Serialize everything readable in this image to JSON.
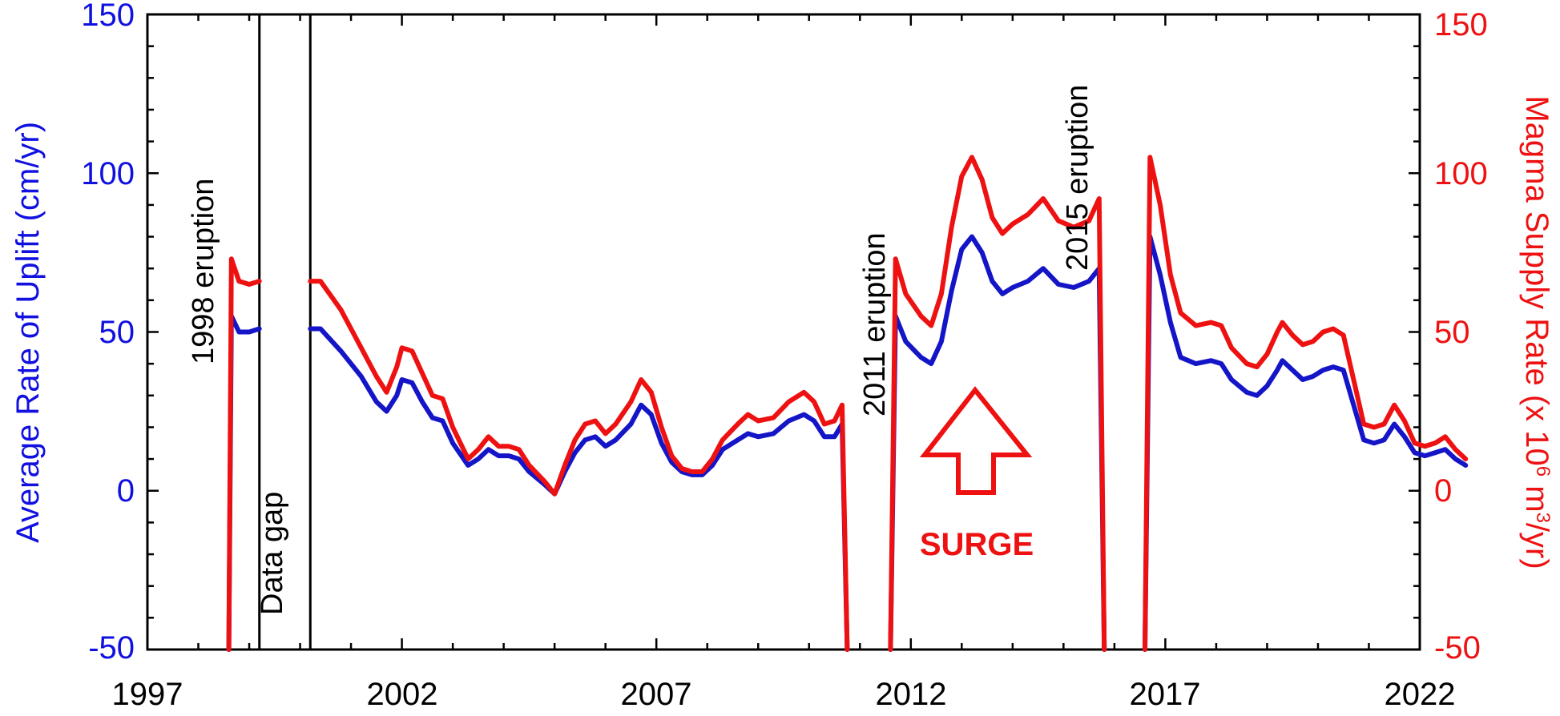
{
  "chart_data": {
    "type": "line",
    "xlim": [
      1997,
      2022
    ],
    "xticks": [
      "1997",
      "2002",
      "2007",
      "2012",
      "2017",
      "2022"
    ],
    "y_left": {
      "label": "Average Rate of Uplift (cm/yr)",
      "lim": [
        -50,
        150
      ],
      "ticks": [
        "150",
        "100",
        "50",
        "0",
        "-50"
      ],
      "color": "#1010e0"
    },
    "y_right": {
      "label_main": "Magma Supply Rate (x 10",
      "label_sup1": "6",
      "label_mid": " m",
      "label_sup2": "3",
      "label_end": "/yr)",
      "lim": [
        -50,
        150
      ],
      "ticks": [
        "150",
        "100",
        "50",
        "0",
        "-50"
      ],
      "color": "#ee1111"
    },
    "annotations": {
      "eruption_1998": "1998 eruption",
      "data_gap": "Data gap",
      "eruption_2011": "2011 eruption",
      "eruption_2015": "2015 eruption",
      "surge": "SURGE"
    },
    "data_gap_range": [
      1999.2,
      2000.2
    ],
    "series": [
      {
        "axis": "left",
        "color": "#1515c8",
        "segments": [
          [
            [
              1998.6,
              -50
            ],
            [
              1998.65,
              55
            ],
            [
              1998.8,
              50
            ],
            [
              1999.0,
              50
            ],
            [
              1999.2,
              51
            ]
          ],
          [
            [
              2000.2,
              51
            ],
            [
              2000.4,
              51
            ],
            [
              2000.8,
              44
            ],
            [
              2001.2,
              36
            ],
            [
              2001.5,
              28
            ],
            [
              2001.7,
              25
            ],
            [
              2001.9,
              30
            ],
            [
              2002.0,
              35
            ],
            [
              2002.2,
              34
            ],
            [
              2002.4,
              28
            ],
            [
              2002.6,
              23
            ],
            [
              2002.8,
              22
            ],
            [
              2003.0,
              15
            ],
            [
              2003.3,
              8
            ],
            [
              2003.5,
              10
            ],
            [
              2003.7,
              13
            ],
            [
              2003.9,
              11
            ],
            [
              2004.1,
              11
            ],
            [
              2004.3,
              10
            ],
            [
              2004.5,
              6
            ],
            [
              2004.8,
              2
            ],
            [
              2005.0,
              -1
            ],
            [
              2005.2,
              6
            ],
            [
              2005.4,
              12
            ],
            [
              2005.6,
              16
            ],
            [
              2005.8,
              17
            ],
            [
              2006.0,
              14
            ],
            [
              2006.2,
              16
            ],
            [
              2006.5,
              21
            ],
            [
              2006.7,
              27
            ],
            [
              2006.9,
              24
            ],
            [
              2007.1,
              15
            ],
            [
              2007.3,
              9
            ],
            [
              2007.5,
              6
            ],
            [
              2007.7,
              5
            ],
            [
              2007.9,
              5
            ],
            [
              2008.1,
              8
            ],
            [
              2008.3,
              13
            ],
            [
              2008.6,
              16
            ],
            [
              2008.8,
              18
            ],
            [
              2009.0,
              17
            ],
            [
              2009.3,
              18
            ],
            [
              2009.6,
              22
            ],
            [
              2009.9,
              24
            ],
            [
              2010.1,
              22
            ],
            [
              2010.3,
              17
            ],
            [
              2010.5,
              17
            ],
            [
              2010.65,
              21
            ],
            [
              2010.75,
              -50
            ]
          ],
          [
            [
              2011.6,
              -50
            ],
            [
              2011.7,
              55
            ],
            [
              2011.9,
              47
            ],
            [
              2012.2,
              42
            ],
            [
              2012.4,
              40
            ],
            [
              2012.6,
              47
            ],
            [
              2012.8,
              63
            ],
            [
              2013.0,
              76
            ],
            [
              2013.2,
              80
            ],
            [
              2013.4,
              75
            ],
            [
              2013.6,
              66
            ],
            [
              2013.8,
              62
            ],
            [
              2014.0,
              64
            ],
            [
              2014.3,
              66
            ],
            [
              2014.6,
              70
            ],
            [
              2014.9,
              65
            ],
            [
              2015.2,
              64
            ],
            [
              2015.5,
              66
            ],
            [
              2015.7,
              70
            ],
            [
              2015.8,
              -50
            ]
          ],
          [
            [
              2016.6,
              -50
            ],
            [
              2016.7,
              80
            ],
            [
              2016.9,
              68
            ],
            [
              2017.1,
              53
            ],
            [
              2017.3,
              42
            ],
            [
              2017.6,
              40
            ],
            [
              2017.9,
              41
            ],
            [
              2018.1,
              40
            ],
            [
              2018.3,
              35
            ],
            [
              2018.6,
              31
            ],
            [
              2018.8,
              30
            ],
            [
              2019.0,
              33
            ],
            [
              2019.2,
              38
            ],
            [
              2019.3,
              41
            ],
            [
              2019.5,
              38
            ],
            [
              2019.7,
              35
            ],
            [
              2019.9,
              36
            ],
            [
              2020.1,
              38
            ],
            [
              2020.3,
              39
            ],
            [
              2020.5,
              38
            ],
            [
              2020.7,
              27
            ],
            [
              2020.9,
              16
            ],
            [
              2021.1,
              15
            ],
            [
              2021.3,
              16
            ],
            [
              2021.5,
              21
            ],
            [
              2021.7,
              17
            ],
            [
              2021.9,
              12
            ],
            [
              2022.1,
              11
            ],
            [
              2022.3,
              12
            ],
            [
              2022.5,
              13
            ],
            [
              2022.7,
              10
            ],
            [
              2022.9,
              8
            ]
          ]
        ]
      },
      {
        "axis": "right",
        "color": "#ee1111",
        "segments": [
          [
            [
              1998.6,
              -50
            ],
            [
              1998.65,
              73
            ],
            [
              1998.8,
              66
            ],
            [
              1999.0,
              65
            ],
            [
              1999.2,
              66
            ]
          ],
          [
            [
              2000.2,
              66
            ],
            [
              2000.4,
              66
            ],
            [
              2000.8,
              57
            ],
            [
              2001.2,
              45
            ],
            [
              2001.5,
              36
            ],
            [
              2001.7,
              31
            ],
            [
              2001.9,
              39
            ],
            [
              2002.0,
              45
            ],
            [
              2002.2,
              44
            ],
            [
              2002.4,
              37
            ],
            [
              2002.6,
              30
            ],
            [
              2002.8,
              29
            ],
            [
              2003.0,
              20
            ],
            [
              2003.3,
              10
            ],
            [
              2003.5,
              13
            ],
            [
              2003.7,
              17
            ],
            [
              2003.9,
              14
            ],
            [
              2004.1,
              14
            ],
            [
              2004.3,
              13
            ],
            [
              2004.5,
              8
            ],
            [
              2004.8,
              3
            ],
            [
              2005.0,
              -1
            ],
            [
              2005.2,
              8
            ],
            [
              2005.4,
              16
            ],
            [
              2005.6,
              21
            ],
            [
              2005.8,
              22
            ],
            [
              2006.0,
              18
            ],
            [
              2006.2,
              21
            ],
            [
              2006.5,
              28
            ],
            [
              2006.7,
              35
            ],
            [
              2006.9,
              31
            ],
            [
              2007.1,
              20
            ],
            [
              2007.3,
              11
            ],
            [
              2007.5,
              7
            ],
            [
              2007.7,
              6
            ],
            [
              2007.9,
              6
            ],
            [
              2008.1,
              10
            ],
            [
              2008.3,
              16
            ],
            [
              2008.6,
              21
            ],
            [
              2008.8,
              24
            ],
            [
              2009.0,
              22
            ],
            [
              2009.3,
              23
            ],
            [
              2009.6,
              28
            ],
            [
              2009.9,
              31
            ],
            [
              2010.1,
              28
            ],
            [
              2010.3,
              21
            ],
            [
              2010.5,
              22
            ],
            [
              2010.65,
              27
            ],
            [
              2010.75,
              -50
            ]
          ],
          [
            [
              2011.6,
              -50
            ],
            [
              2011.7,
              73
            ],
            [
              2011.9,
              62
            ],
            [
              2012.2,
              55
            ],
            [
              2012.4,
              52
            ],
            [
              2012.6,
              62
            ],
            [
              2012.8,
              83
            ],
            [
              2013.0,
              99
            ],
            [
              2013.2,
              105
            ],
            [
              2013.4,
              98
            ],
            [
              2013.6,
              86
            ],
            [
              2013.8,
              81
            ],
            [
              2014.0,
              84
            ],
            [
              2014.3,
              87
            ],
            [
              2014.6,
              92
            ],
            [
              2014.9,
              85
            ],
            [
              2015.2,
              83
            ],
            [
              2015.5,
              85
            ],
            [
              2015.7,
              92
            ],
            [
              2015.8,
              -50
            ]
          ],
          [
            [
              2016.6,
              -50
            ],
            [
              2016.7,
              105
            ],
            [
              2016.9,
              90
            ],
            [
              2017.1,
              68
            ],
            [
              2017.3,
              56
            ],
            [
              2017.6,
              52
            ],
            [
              2017.9,
              53
            ],
            [
              2018.1,
              52
            ],
            [
              2018.3,
              45
            ],
            [
              2018.6,
              40
            ],
            [
              2018.8,
              39
            ],
            [
              2019.0,
              43
            ],
            [
              2019.2,
              50
            ],
            [
              2019.3,
              53
            ],
            [
              2019.5,
              49
            ],
            [
              2019.7,
              46
            ],
            [
              2019.9,
              47
            ],
            [
              2020.1,
              50
            ],
            [
              2020.3,
              51
            ],
            [
              2020.5,
              49
            ],
            [
              2020.7,
              35
            ],
            [
              2020.9,
              21
            ],
            [
              2021.1,
              20
            ],
            [
              2021.3,
              21
            ],
            [
              2021.5,
              27
            ],
            [
              2021.7,
              22
            ],
            [
              2021.9,
              15
            ],
            [
              2022.1,
              14
            ],
            [
              2022.3,
              15
            ],
            [
              2022.5,
              17
            ],
            [
              2022.7,
              13
            ],
            [
              2022.9,
              10
            ]
          ]
        ]
      }
    ]
  }
}
